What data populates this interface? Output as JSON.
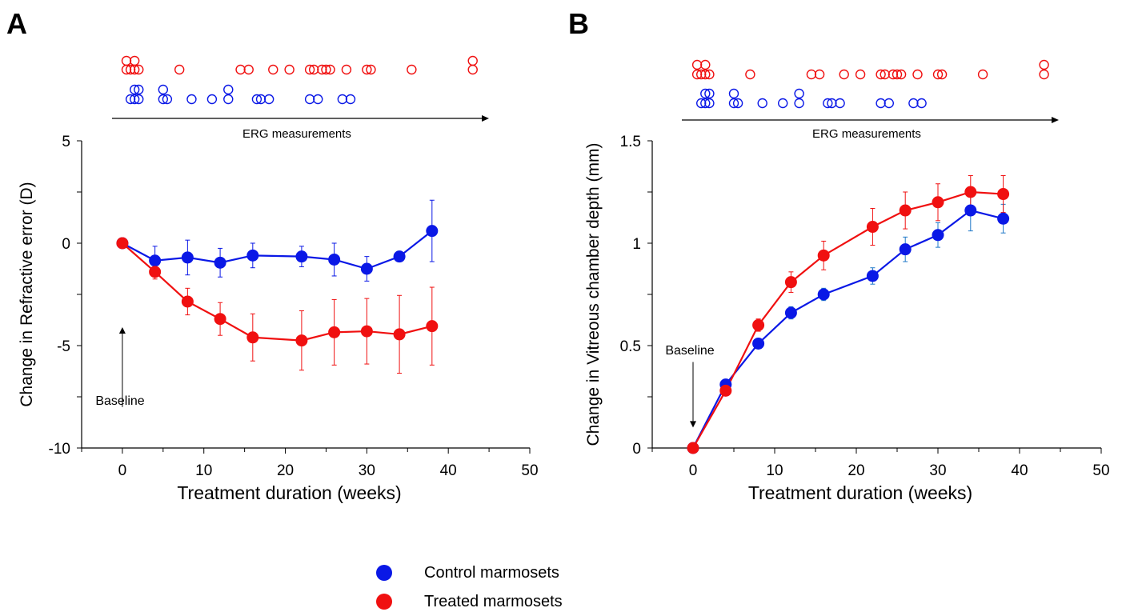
{
  "colors": {
    "control": "#0a18e6",
    "treated": "#f01010",
    "error_control_B": "#1f78c8"
  },
  "legend": [
    {
      "label": "Control marmosets",
      "series": "control"
    },
    {
      "label": "Treated marmosets",
      "series": "treated"
    }
  ],
  "chart_data": [
    {
      "panel_label": "A",
      "type": "line",
      "xlabel": "Treatment duration (weeks)",
      "ylabel": "Change in Refractive error (D)",
      "xlim": [
        -5,
        50
      ],
      "ylim": [
        -10,
        5
      ],
      "xticks": [
        0,
        10,
        20,
        30,
        40,
        50
      ],
      "yticks": [
        5,
        0,
        -5,
        -10
      ],
      "annotation": {
        "text": "Baseline",
        "arrow_from": [
          0,
          -8
        ],
        "arrow_to": [
          0,
          -4.1
        ],
        "direction": "up"
      },
      "erg_label": "ERG measurements",
      "erg_measurements": {
        "treated": [
          0.5,
          0.5,
          1.0,
          1.5,
          1.5,
          2.0,
          7.0,
          14.5,
          15.5,
          18.5,
          20.5,
          23.0,
          23.5,
          24.5,
          25.0,
          25.5,
          27.5,
          30.0,
          30.5,
          35.5,
          43.0,
          43.0
        ],
        "control": [
          1.0,
          1.5,
          1.5,
          2.0,
          2.0,
          5.0,
          5.0,
          5.5,
          8.5,
          11.0,
          13.0,
          13.0,
          16.5,
          17.0,
          18.0,
          23.0,
          24.0,
          27.0,
          28.0
        ]
      },
      "series": [
        {
          "name": "Control marmosets",
          "key": "control",
          "x": [
            0,
            4,
            8,
            12,
            16,
            22,
            26,
            30,
            34,
            38
          ],
          "y": [
            0,
            -0.85,
            -0.7,
            -0.95,
            -0.6,
            -0.65,
            -0.8,
            -1.25,
            -0.65,
            0.6
          ],
          "err": [
            0,
            0.7,
            0.85,
            0.7,
            0.6,
            0.5,
            0.8,
            0.6,
            0.0,
            1.5
          ]
        },
        {
          "name": "Treated marmosets",
          "key": "treated",
          "x": [
            0,
            4,
            8,
            12,
            16,
            22,
            26,
            30,
            34,
            38
          ],
          "y": [
            0,
            -1.4,
            -2.85,
            -3.7,
            -4.6,
            -4.75,
            -4.35,
            -4.3,
            -4.45,
            -4.05
          ],
          "err": [
            0,
            0.35,
            0.65,
            0.8,
            1.15,
            1.45,
            1.6,
            1.6,
            1.9,
            1.9
          ]
        }
      ]
    },
    {
      "panel_label": "B",
      "type": "line",
      "xlabel": "Treatment duration (weeks)",
      "ylabel": "Change in Vitreous chamber depth (mm)",
      "xlim": [
        -5,
        50
      ],
      "ylim": [
        0,
        1.5
      ],
      "xticks": [
        0,
        10,
        20,
        30,
        40,
        50
      ],
      "yticks": [
        0,
        0.5,
        1,
        1.5
      ],
      "annotation": {
        "text": "Baseline",
        "arrow_from": [
          0,
          0.42
        ],
        "arrow_to": [
          0,
          0.1
        ],
        "direction": "down"
      },
      "erg_label": "ERG measurements",
      "erg_measurements": {
        "treated": [
          0.5,
          0.5,
          1.0,
          1.5,
          1.5,
          2.0,
          7.0,
          14.5,
          15.5,
          18.5,
          20.5,
          23.0,
          23.5,
          24.5,
          25.0,
          25.5,
          27.5,
          30.0,
          30.5,
          35.5,
          43.0,
          43.0
        ],
        "control": [
          1.0,
          1.5,
          1.5,
          2.0,
          2.0,
          5.0,
          5.0,
          5.5,
          8.5,
          11.0,
          13.0,
          13.0,
          16.5,
          17.0,
          18.0,
          23.0,
          24.0,
          27.0,
          28.0
        ]
      },
      "series": [
        {
          "name": "Control marmosets",
          "key": "control",
          "x": [
            0,
            4,
            8,
            12,
            16,
            22,
            26,
            30,
            34,
            38
          ],
          "y": [
            0,
            0.31,
            0.51,
            0.66,
            0.75,
            0.84,
            0.97,
            1.04,
            1.16,
            1.12
          ],
          "err": [
            0,
            0.0,
            0.0,
            0.03,
            0.03,
            0.04,
            0.06,
            0.06,
            0.1,
            0.07
          ]
        },
        {
          "name": "Treated marmosets",
          "key": "treated",
          "x": [
            0,
            4,
            8,
            12,
            16,
            22,
            26,
            30,
            34,
            38
          ],
          "y": [
            0,
            0.28,
            0.6,
            0.81,
            0.94,
            1.08,
            1.16,
            1.2,
            1.25,
            1.24
          ],
          "err": [
            0,
            0.0,
            0.03,
            0.05,
            0.07,
            0.09,
            0.09,
            0.09,
            0.08,
            0.09
          ]
        }
      ]
    }
  ]
}
